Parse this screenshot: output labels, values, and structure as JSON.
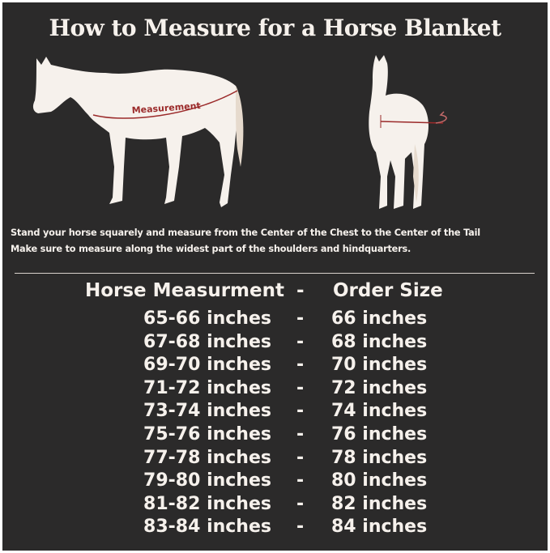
{
  "title": "How to Measure for a Horse Blanket",
  "diagram": {
    "measurement_label": "Measurement",
    "accent_color": "#9b2a2a",
    "horse_color": "#f6f1ec"
  },
  "instructions": [
    "Stand your horse squarely and measure from the Center of the Chest to the Center of the Tail",
    "Make sure to measure along the widest part of the shoulders and hindquarters."
  ],
  "table": {
    "headers": [
      "Horse Measurment",
      "-",
      "Order Size"
    ],
    "rows": [
      [
        "65-66 inches",
        "-",
        "66 inches"
      ],
      [
        "67-68 inches",
        "-",
        "68 inches"
      ],
      [
        "69-70 inches",
        "-",
        "70 inches"
      ],
      [
        "71-72 inches",
        "-",
        "72 inches"
      ],
      [
        "73-74 inches",
        "-",
        "74 inches"
      ],
      [
        "75-76 inches",
        "-",
        "76 inches"
      ],
      [
        "77-78 inches",
        "-",
        "78 inches"
      ],
      [
        "79-80 inches",
        "-",
        "80 inches"
      ],
      [
        "81-82 inches",
        "-",
        "82 inches"
      ],
      [
        "83-84 inches",
        "-",
        "84 inches"
      ]
    ]
  }
}
